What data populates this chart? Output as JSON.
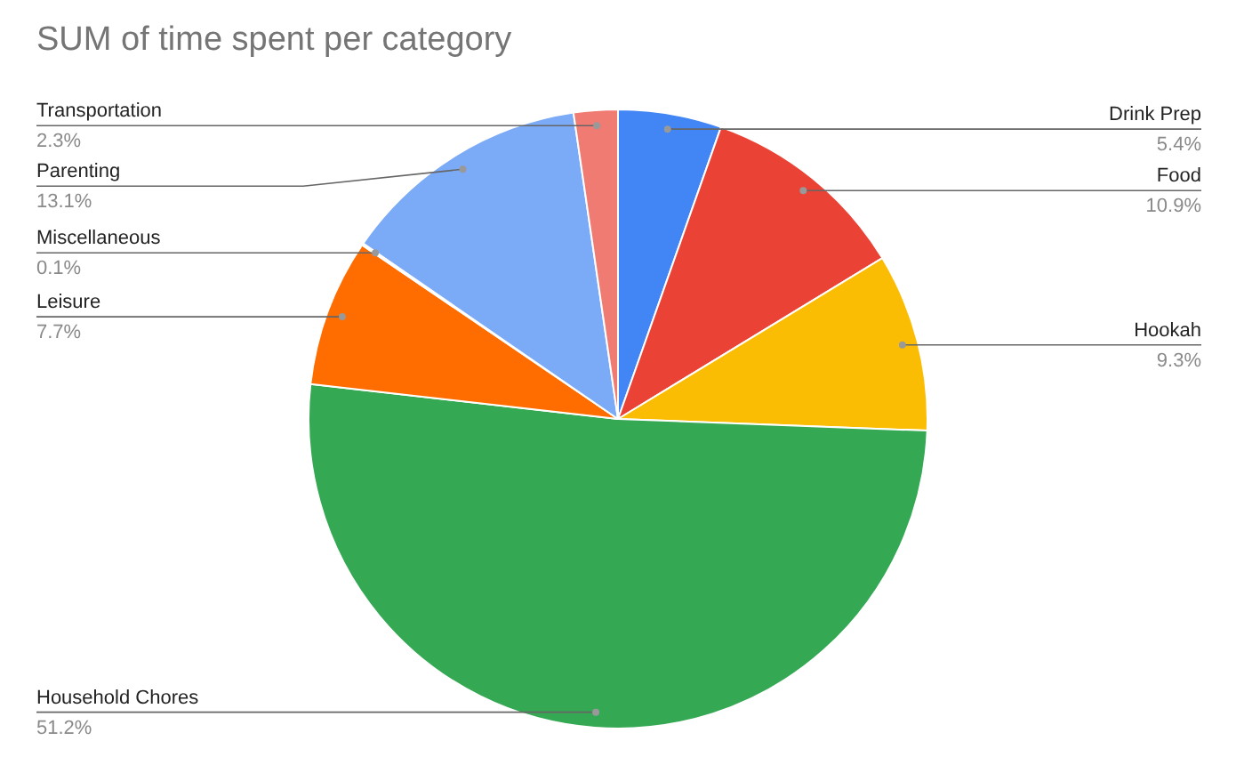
{
  "chart_data": {
    "type": "pie",
    "title": "SUM of time spent per category",
    "categories": [
      "Drink Prep",
      "Food",
      "Hookah",
      "Household Chores",
      "Leisure",
      "Miscellaneous",
      "Parenting",
      "Transportation"
    ],
    "values": [
      5.4,
      10.9,
      9.3,
      51.2,
      7.7,
      0.1,
      13.1,
      2.3
    ],
    "colors": [
      "#4285f4",
      "#ea4335",
      "#fbbc04",
      "#34a853",
      "#ff6d01",
      "#46bdc6",
      "#7baaf7",
      "#f07b72"
    ],
    "value_labels": [
      "5.4%",
      "10.9%",
      "9.3%",
      "51.2%",
      "7.7%",
      "0.1%",
      "13.1%",
      "2.3%"
    ]
  }
}
